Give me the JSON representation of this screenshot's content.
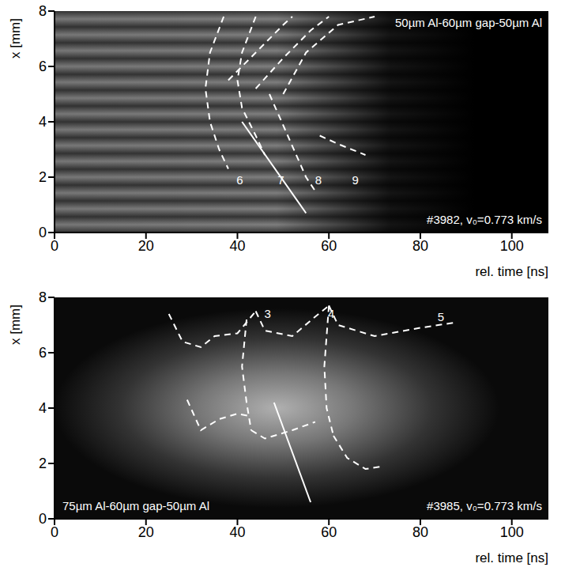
{
  "chart_data": [
    {
      "type": "line",
      "title": "50µm Al-60µm gap-50µm Al",
      "subtitle": "#3982, v₀=0.773 km/s",
      "x_label": "rel. time [ns]",
      "y_label": "x [mm]",
      "xlim": [
        0,
        108
      ],
      "xticks": [
        0,
        20,
        40,
        60,
        80,
        100
      ],
      "ylim": [
        0,
        8
      ],
      "yticks": [
        0,
        2,
        4,
        6,
        8
      ],
      "grid": false,
      "series": [
        {
          "color": "#ffffff",
          "line_style": "dashed",
          "x": [
            37,
            34,
            33,
            34,
            36,
            38
          ],
          "y": [
            7.8,
            6.5,
            5.2,
            4,
            3,
            2.3
          ]
        },
        {
          "color": "#ffffff",
          "line_style": "dashed",
          "x": [
            44,
            41,
            40,
            41,
            44,
            46
          ],
          "y": [
            7.8,
            6.5,
            5.5,
            4.5,
            3.5,
            2.8
          ]
        },
        {
          "color": "#ffffff",
          "line_style": "dashed",
          "x": [
            38,
            44,
            50,
            52
          ],
          "y": [
            5.5,
            6.5,
            7.5,
            7.8
          ]
        },
        {
          "color": "#ffffff",
          "line_style": "dashed",
          "x": [
            44,
            50,
            56,
            60
          ],
          "y": [
            5.2,
            6.3,
            7.3,
            7.8
          ]
        },
        {
          "color": "#ffffff",
          "line_style": "dashed",
          "x": [
            50,
            55,
            62,
            70
          ],
          "y": [
            5,
            6.5,
            7.5,
            7.8
          ]
        },
        {
          "color": "#ffffff",
          "line_style": "dashed",
          "x": [
            47,
            51,
            55,
            57
          ],
          "y": [
            5,
            3.5,
            2,
            1.5
          ]
        },
        {
          "color": "#ffffff",
          "line_style": "dashed",
          "x": [
            58,
            62,
            68
          ],
          "y": [
            3.5,
            3.2,
            2.8
          ]
        },
        {
          "color": "#ffffff",
          "line_style": "solid",
          "x": [
            41,
            55
          ],
          "y": [
            4,
            0.7
          ]
        }
      ],
      "annotations": [
        {
          "text": "6",
          "x": 40.5,
          "y": 1.9
        },
        {
          "text": "7",
          "x": 49.5,
          "y": 1.9
        },
        {
          "text": "8",
          "x": 57.7,
          "y": 1.9
        },
        {
          "text": "9",
          "x": 65.8,
          "y": 1.9
        }
      ]
    },
    {
      "type": "line",
      "title": "75µm Al-60µm gap-50µm Al",
      "subtitle": "#3985, v₀=0.773 km/s",
      "x_label": "rel. time [ns]",
      "y_label": "x [mm]",
      "xlim": [
        0,
        108
      ],
      "xticks": [
        0,
        20,
        40,
        60,
        80,
        100
      ],
      "ylim": [
        0,
        8
      ],
      "yticks": [
        0,
        2,
        4,
        6,
        8
      ],
      "grid": false,
      "series": [
        {
          "color": "#ffffff",
          "line_style": "dashed",
          "x": [
            25,
            28,
            32,
            35,
            40,
            44
          ],
          "y": [
            7.4,
            6.4,
            6.2,
            6.6,
            6.7,
            7.5
          ]
        },
        {
          "color": "#ffffff",
          "line_style": "dashed",
          "x": [
            44,
            46,
            52,
            57,
            60
          ],
          "y": [
            7.5,
            6.8,
            6.6,
            7.3,
            7.7
          ]
        },
        {
          "color": "#ffffff",
          "line_style": "dashed",
          "x": [
            60,
            62,
            70,
            80,
            88
          ],
          "y": [
            7.7,
            7,
            6.6,
            6.9,
            7.1
          ]
        },
        {
          "color": "#ffffff",
          "line_style": "dashed",
          "x": [
            29,
            32,
            36,
            40,
            43
          ],
          "y": [
            4.3,
            3.2,
            3.6,
            3.8,
            3.7
          ]
        },
        {
          "color": "#ffffff",
          "line_style": "dashed",
          "x": [
            43,
            46,
            52,
            57
          ],
          "y": [
            3.2,
            2.9,
            3.2,
            3.5
          ]
        },
        {
          "color": "#ffffff",
          "line_style": "dashed",
          "x": [
            42,
            41,
            42,
            43
          ],
          "y": [
            7.2,
            5.5,
            4.2,
            3.2
          ]
        },
        {
          "color": "#ffffff",
          "line_style": "dashed",
          "x": [
            60,
            59,
            59.5,
            61
          ],
          "y": [
            7.7,
            5.5,
            4,
            3
          ]
        },
        {
          "color": "#ffffff",
          "line_style": "dashed",
          "x": [
            61,
            64,
            68,
            72
          ],
          "y": [
            3,
            2.2,
            1.8,
            1.9
          ]
        },
        {
          "color": "#ffffff",
          "line_style": "solid",
          "x": [
            48,
            56
          ],
          "y": [
            4.2,
            0.6
          ]
        }
      ],
      "annotations": [
        {
          "text": "3",
          "x": 46.6,
          "y": 7.4
        },
        {
          "text": "4",
          "x": 60.5,
          "y": 7.4
        },
        {
          "text": "5",
          "x": 84.5,
          "y": 7.3
        }
      ]
    }
  ]
}
